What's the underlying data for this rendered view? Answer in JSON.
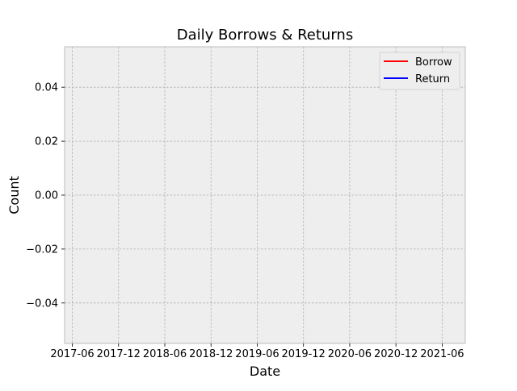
{
  "chart_data": {
    "type": "line",
    "title": "Daily Borrows & Returns",
    "xlabel": "Date",
    "ylabel": "Count",
    "x_tick_labels": [
      "2017-06",
      "2017-12",
      "2018-06",
      "2018-12",
      "2019-06",
      "2019-12",
      "2020-06",
      "2020-12",
      "2021-06"
    ],
    "y_tick_labels": [
      "−0.04",
      "−0.02",
      "0.00",
      "0.02",
      "0.04"
    ],
    "y_ticks": [
      -0.04,
      -0.02,
      0.0,
      0.02,
      0.04
    ],
    "ylim": [
      -0.055,
      0.055
    ],
    "xlim": [
      "2017-05",
      "2021-09"
    ],
    "grid": true,
    "legend_position": "top-right",
    "series": [
      {
        "name": "Borrow",
        "color": "#ff0000",
        "values": []
      },
      {
        "name": "Return",
        "color": "#0000ff",
        "values": []
      }
    ],
    "colors": {
      "axes_background": "#eeeeee",
      "grid": "#b0b0b0",
      "spine": "#bcbcbc"
    }
  }
}
